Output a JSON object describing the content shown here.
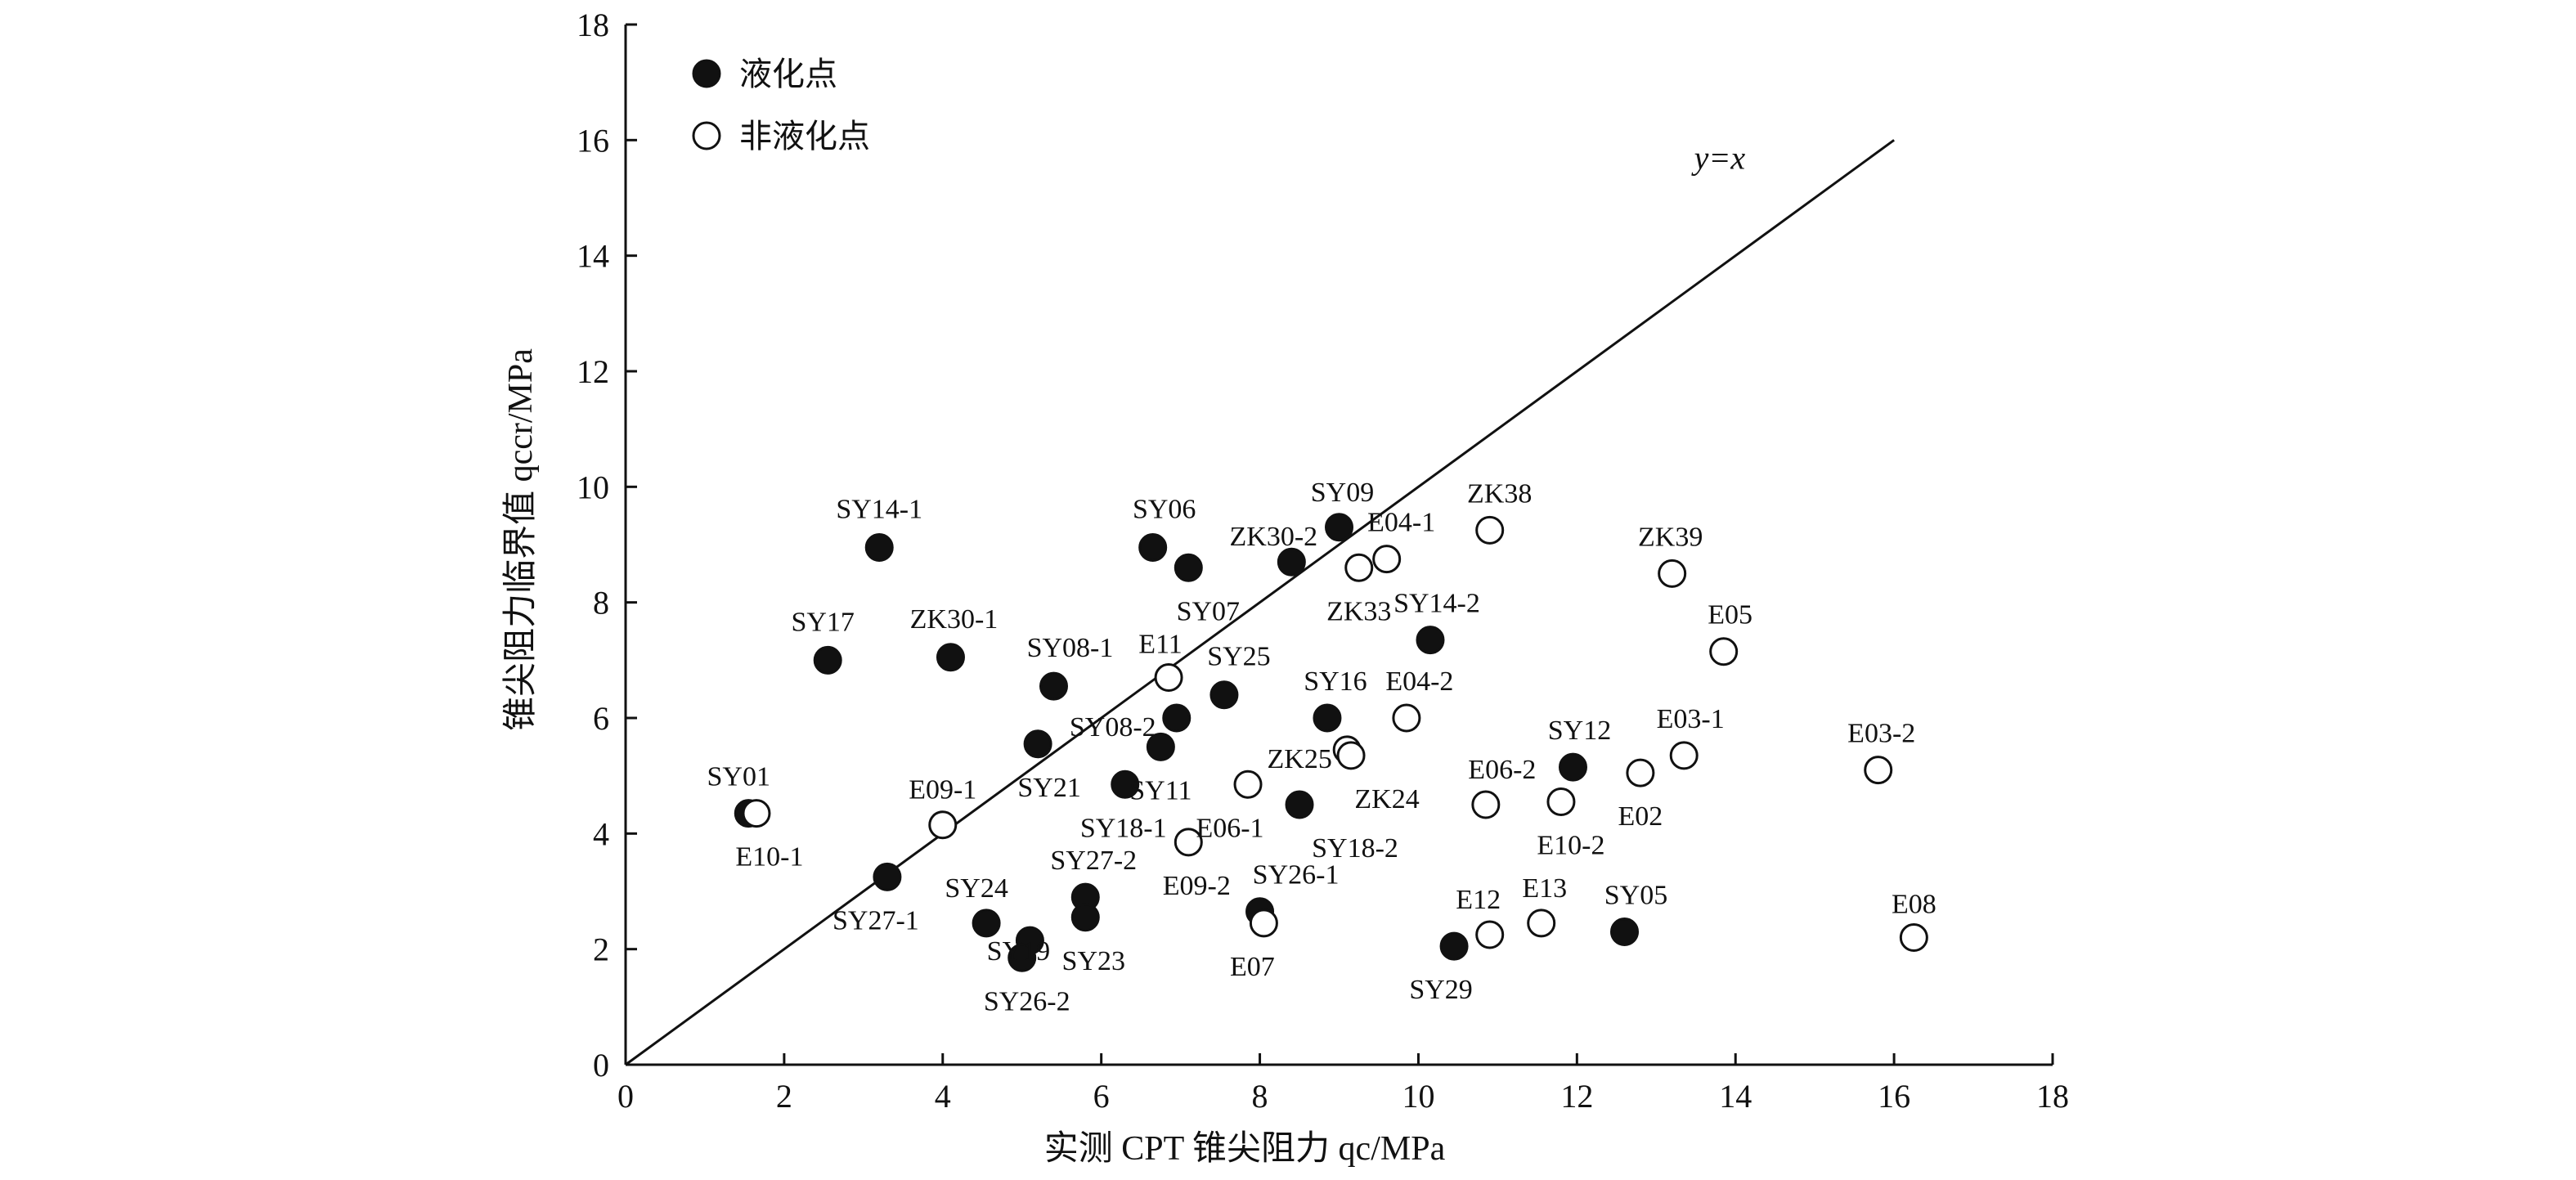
{
  "chart_data": {
    "type": "scatter",
    "xlabel": "实测 CPT 锥尖阻力 qc/MPa",
    "ylabel": "锥尖阻力临界值 qccr/MPa",
    "xlim": [
      0,
      18
    ],
    "ylim": [
      0,
      18
    ],
    "xticks": [
      "0",
      "2",
      "4",
      "6",
      "8",
      "10",
      "12",
      "14",
      "16",
      "18"
    ],
    "yticks": [
      "0",
      "2",
      "4",
      "6",
      "8",
      "10",
      "12",
      "14",
      "16",
      "18"
    ],
    "grid": false,
    "legend_position": "top-left",
    "reference_line": {
      "label": "y=x",
      "from": [
        0,
        0
      ],
      "to": [
        16,
        16
      ]
    },
    "series": [
      {
        "name": "液化点",
        "marker": "filled-circle",
        "points": [
          {
            "label": "SY14-1",
            "x": 3.2,
            "y": 8.95
          },
          {
            "label": "SY17",
            "x": 2.55,
            "y": 7.0
          },
          {
            "label": "ZK30-1",
            "x": 4.1,
            "y": 7.05
          },
          {
            "label": "SY06",
            "x": 6.65,
            "y": 8.95
          },
          {
            "label": "SY07",
            "x": 7.1,
            "y": 8.6
          },
          {
            "label": "SY09",
            "x": 9.0,
            "y": 9.3
          },
          {
            "label": "ZK30-2",
            "x": 8.4,
            "y": 8.7
          },
          {
            "label": "SY08-1",
            "x": 5.4,
            "y": 6.55
          },
          {
            "label": "SY08-2",
            "x": 6.95,
            "y": 6.0
          },
          {
            "label": "SY25",
            "x": 7.55,
            "y": 6.4
          },
          {
            "label": "SY21",
            "x": 5.2,
            "y": 5.55
          },
          {
            "label": "SY11",
            "x": 6.75,
            "y": 5.5
          },
          {
            "label": "SY18-1",
            "x": 6.3,
            "y": 4.85
          },
          {
            "label": "SY16",
            "x": 8.85,
            "y": 6.0
          },
          {
            "label": "SY14-2",
            "x": 10.15,
            "y": 7.35
          },
          {
            "label": "SY18-2",
            "x": 8.5,
            "y": 4.5
          },
          {
            "label": "SY12",
            "x": 11.95,
            "y": 5.15
          },
          {
            "label": "SY27-1",
            "x": 3.3,
            "y": 3.25
          },
          {
            "label": "SY27-2",
            "x": 5.8,
            "y": 2.9
          },
          {
            "label": "SY23",
            "x": 5.8,
            "y": 2.55
          },
          {
            "label": "SY24",
            "x": 4.55,
            "y": 2.45
          },
          {
            "label": "SY19",
            "x": 5.1,
            "y": 2.15
          },
          {
            "label": "SY26-2",
            "x": 5.0,
            "y": 1.85
          },
          {
            "label": "SY26-1",
            "x": 8.0,
            "y": 2.65
          },
          {
            "label": "SY29",
            "x": 10.45,
            "y": 2.05
          },
          {
            "label": "SY05",
            "x": 12.6,
            "y": 2.3
          },
          {
            "label": "SY01",
            "x": 1.55,
            "y": 4.35
          }
        ]
      },
      {
        "name": "非液化点",
        "marker": "open-circle",
        "points": [
          {
            "label": "E10-1",
            "x": 1.65,
            "y": 4.35
          },
          {
            "label": "E09-1",
            "x": 4.0,
            "y": 4.15
          },
          {
            "label": "E11",
            "x": 6.85,
            "y": 6.7
          },
          {
            "label": "E09-2",
            "x": 7.1,
            "y": 3.85
          },
          {
            "label": "E06-1",
            "x": 7.85,
            "y": 4.85
          },
          {
            "label": "E07",
            "x": 8.05,
            "y": 2.45
          },
          {
            "label": "ZK25",
            "x": 9.1,
            "y": 5.45
          },
          {
            "label": "ZK24",
            "x": 9.15,
            "y": 5.35
          },
          {
            "label": "ZK33",
            "x": 9.25,
            "y": 8.6
          },
          {
            "label": "E04-1",
            "x": 9.6,
            "y": 8.75
          },
          {
            "label": "ZK38",
            "x": 10.9,
            "y": 9.25
          },
          {
            "label": "E04-2",
            "x": 9.85,
            "y": 6.0
          },
          {
            "label": "E06-2",
            "x": 10.85,
            "y": 4.5
          },
          {
            "label": "E10-2",
            "x": 11.8,
            "y": 4.55
          },
          {
            "label": "E02",
            "x": 12.8,
            "y": 5.05
          },
          {
            "label": "E03-1",
            "x": 13.35,
            "y": 5.35
          },
          {
            "label": "ZK39",
            "x": 13.2,
            "y": 8.5
          },
          {
            "label": "E05",
            "x": 13.85,
            "y": 7.15
          },
          {
            "label": "E03-2",
            "x": 15.8,
            "y": 5.1
          },
          {
            "label": "E08",
            "x": 16.25,
            "y": 2.2
          },
          {
            "label": "E12",
            "x": 10.9,
            "y": 2.25
          },
          {
            "label": "E13",
            "x": 11.55,
            "y": 2.45
          }
        ]
      }
    ]
  }
}
